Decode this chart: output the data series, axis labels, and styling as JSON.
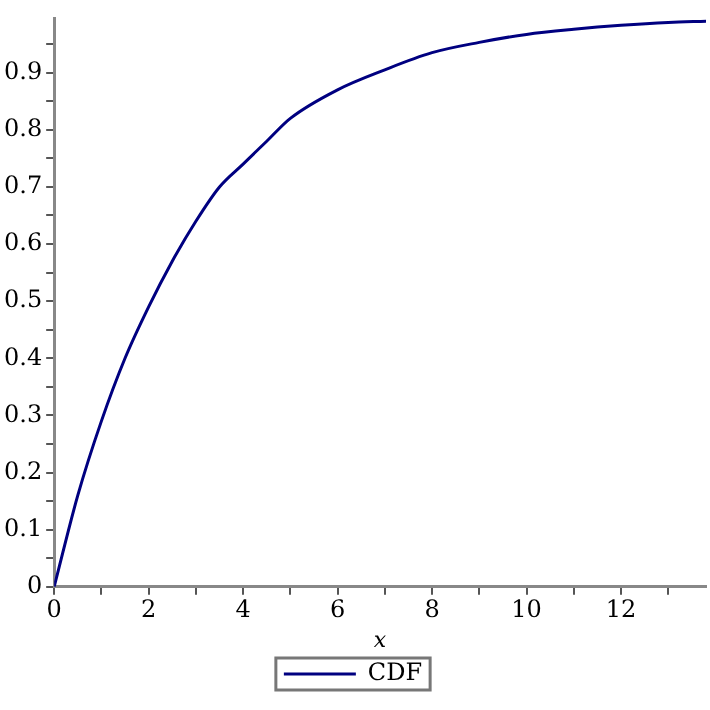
{
  "chart_data": {
    "type": "line",
    "xlabel": "x",
    "x": [
      0,
      0.5,
      1,
      1.5,
      2,
      2.5,
      3,
      3.5,
      4,
      4.5,
      5,
      6,
      7,
      8,
      9,
      10,
      11,
      12,
      13,
      13.8
    ],
    "series": [
      {
        "name": "CDF",
        "color": "#000080",
        "values": [
          0,
          0.16,
          0.29,
          0.4,
          0.49,
          0.57,
          0.64,
          0.7,
          0.74,
          0.78,
          0.82,
          0.87,
          0.905,
          0.935,
          0.953,
          0.967,
          0.976,
          0.983,
          0.988,
          0.99
        ]
      }
    ],
    "xlim": [
      0,
      13.8
    ],
    "xticks": [
      0,
      {
        "value": 1,
        "label": null
      },
      2,
      {
        "value": 3,
        "label": null
      },
      4,
      {
        "value": 5,
        "label": null
      },
      6,
      {
        "value": 7,
        "label": null
      },
      8,
      {
        "value": 9,
        "label": null
      },
      10,
      {
        "value": 11,
        "label": null
      },
      12,
      {
        "value": 13,
        "label": null
      }
    ],
    "ylim": [
      0,
      0.995
    ],
    "yticks": [
      0,
      {
        "value": 0.05,
        "label": null
      },
      0.1,
      {
        "value": 0.15,
        "label": null
      },
      0.2,
      {
        "value": 0.25,
        "label": null
      },
      0.3,
      {
        "value": 0.35,
        "label": null
      },
      0.4,
      {
        "value": 0.45,
        "label": null
      },
      0.5,
      {
        "value": 0.55,
        "label": null
      },
      0.6,
      {
        "value": 0.65,
        "label": null
      },
      0.7,
      {
        "value": 0.75,
        "label": null
      },
      0.8,
      {
        "value": 0.85,
        "label": null
      },
      0.9,
      {
        "value": 0.95,
        "label": null
      }
    ],
    "grid": false,
    "legend": "bottom",
    "marker": "none",
    "line_style": "solid"
  }
}
